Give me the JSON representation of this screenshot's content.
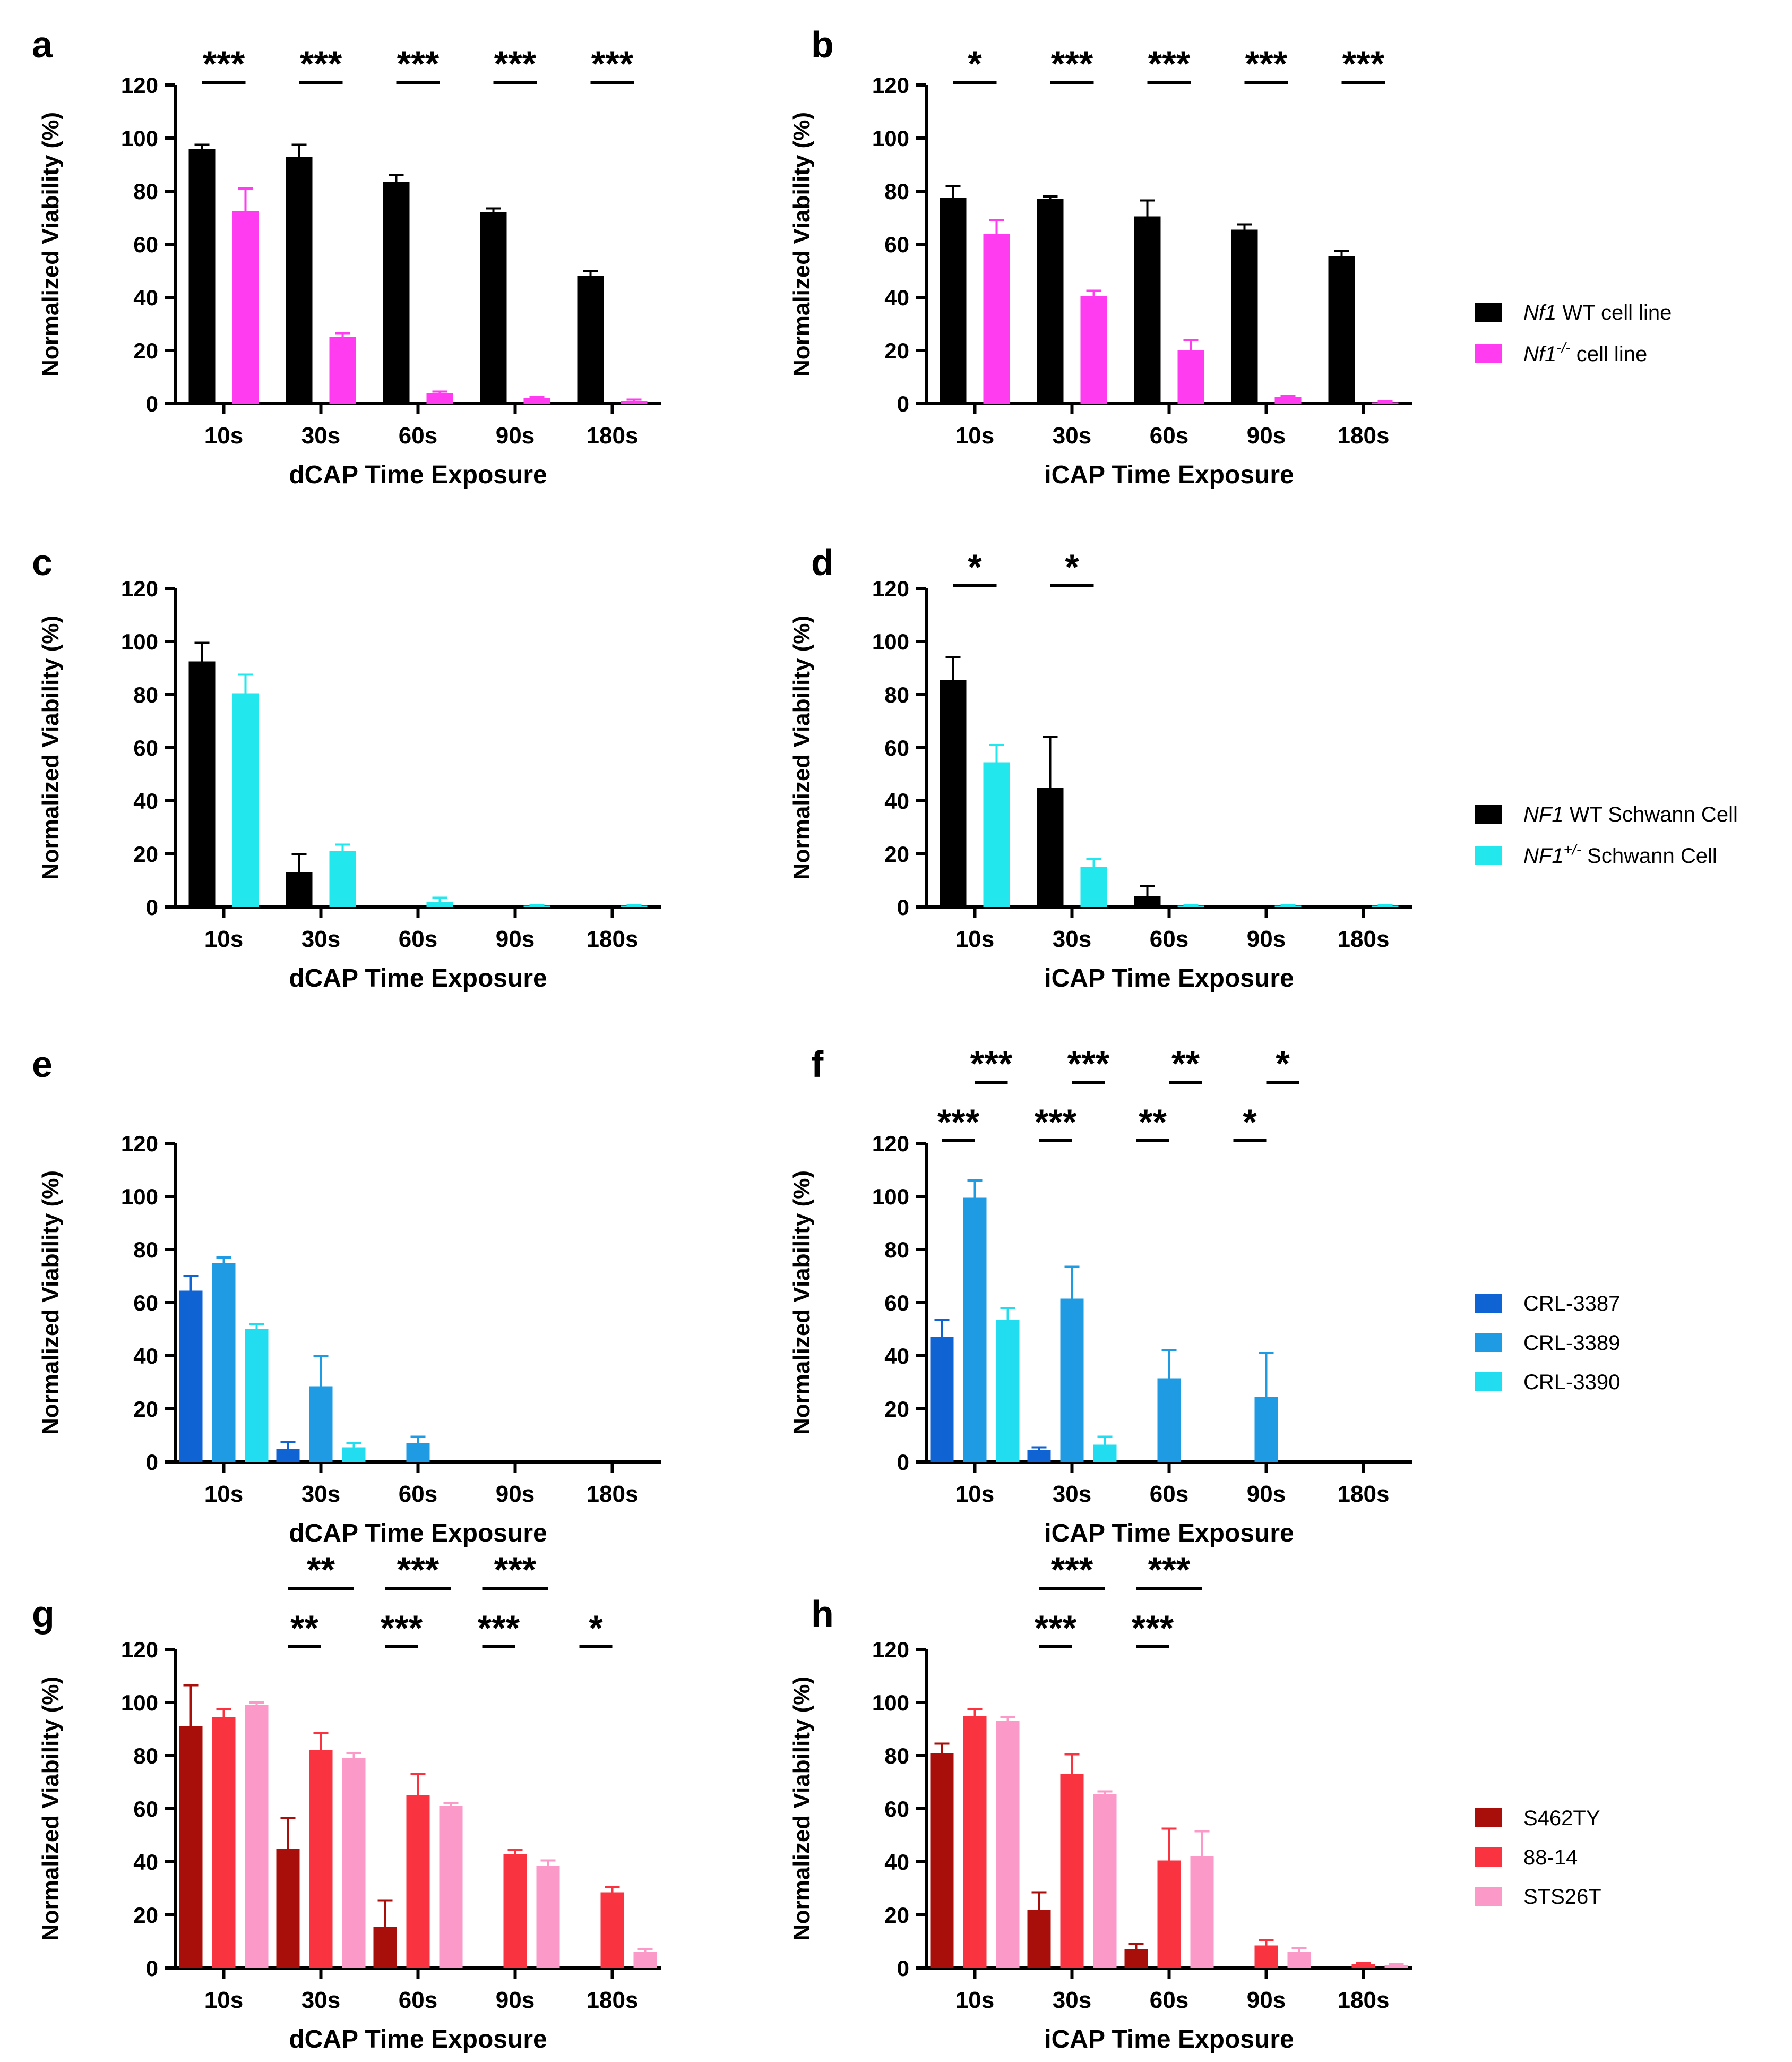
{
  "figure": {
    "y_axis_label": "Normalized Viability (%)",
    "categories": [
      "10s",
      "30s",
      "60s",
      "90s",
      "180s"
    ],
    "ylim": [
      0,
      120
    ],
    "yticks": [
      "0",
      "20",
      "40",
      "60",
      "80",
      "100",
      "120"
    ]
  },
  "legends": [
    {
      "entries": [
        {
          "italic": "Nf1",
          "sup": "",
          "rest": " WT cell line",
          "color": "#000000"
        },
        {
          "italic": "Nf1",
          "sup": "-/-",
          "rest": " cell line",
          "color": "#ff3cf0"
        }
      ]
    },
    {
      "entries": [
        {
          "italic": "NF1",
          "sup": "",
          "rest": " WT Schwann Cell",
          "color": "#000000"
        },
        {
          "italic": "NF1",
          "sup": "+/-",
          "rest": " Schwann Cell",
          "color": "#22e8ee"
        }
      ]
    },
    {
      "entries": [
        {
          "italic": "",
          "sup": "",
          "rest": "CRL-3387",
          "color": "#0f63d2"
        },
        {
          "italic": "",
          "sup": "",
          "rest": "CRL-3389",
          "color": "#1f9be3"
        },
        {
          "italic": "",
          "sup": "",
          "rest": "CRL-3390",
          "color": "#22dcef"
        }
      ]
    },
    {
      "entries": [
        {
          "italic": "",
          "sup": "",
          "rest": "S462TY",
          "color": "#a80f0b"
        },
        {
          "italic": "",
          "sup": "",
          "rest": "88-14",
          "color": "#fa3340"
        },
        {
          "italic": "",
          "sup": "",
          "rest": "STS26T",
          "color": "#fb9ac8"
        }
      ]
    }
  ],
  "chart_data": [
    {
      "panel": "a",
      "type": "bar",
      "xlabel": "dCAP Time Exposure",
      "ylabel": "Normalized Viability (%)",
      "ylim": [
        0,
        120
      ],
      "categories": [
        "10s",
        "30s",
        "60s",
        "90s",
        "180s"
      ],
      "series": [
        {
          "name": "Nf1 WT cell line",
          "color": "#000000",
          "values": [
            96,
            93,
            83.5,
            72,
            48
          ],
          "errors": [
            1.5,
            4.5,
            2.5,
            1.5,
            2
          ]
        },
        {
          "name": "Nf1-/- cell line",
          "color": "#ff3cf0",
          "values": [
            72.5,
            25,
            4,
            2,
            1
          ],
          "errors": [
            8.5,
            1.5,
            0.5,
            0.5,
            0.5
          ]
        }
      ],
      "annotations": [
        {
          "label": "***",
          "from": [
            0,
            0
          ],
          "to": [
            0,
            1
          ],
          "row": 0
        },
        {
          "label": "***",
          "from": [
            1,
            0
          ],
          "to": [
            1,
            1
          ],
          "row": 0
        },
        {
          "label": "***",
          "from": [
            2,
            0
          ],
          "to": [
            2,
            1
          ],
          "row": 0
        },
        {
          "label": "***",
          "from": [
            3,
            0
          ],
          "to": [
            3,
            1
          ],
          "row": 0
        },
        {
          "label": "***",
          "from": [
            4,
            0
          ],
          "to": [
            4,
            1
          ],
          "row": 0
        }
      ]
    },
    {
      "panel": "b",
      "type": "bar",
      "xlabel": "iCAP Time Exposure",
      "ylabel": "Normalized Viability (%)",
      "ylim": [
        0,
        120
      ],
      "categories": [
        "10s",
        "30s",
        "60s",
        "90s",
        "180s"
      ],
      "series": [
        {
          "name": "Nf1 WT cell line",
          "color": "#000000",
          "values": [
            77.5,
            77,
            70.5,
            65.5,
            55.5
          ],
          "errors": [
            4.5,
            1,
            6,
            2,
            2
          ]
        },
        {
          "name": "Nf1-/- cell line",
          "color": "#ff3cf0",
          "values": [
            64,
            40.5,
            20,
            2.5,
            0.5
          ],
          "errors": [
            5,
            2,
            4,
            0.5,
            0.3
          ]
        }
      ],
      "annotations": [
        {
          "label": "*",
          "from": [
            0,
            0
          ],
          "to": [
            0,
            1
          ],
          "row": 0
        },
        {
          "label": "***",
          "from": [
            1,
            0
          ],
          "to": [
            1,
            1
          ],
          "row": 0
        },
        {
          "label": "***",
          "from": [
            2,
            0
          ],
          "to": [
            2,
            1
          ],
          "row": 0
        },
        {
          "label": "***",
          "from": [
            3,
            0
          ],
          "to": [
            3,
            1
          ],
          "row": 0
        },
        {
          "label": "***",
          "from": [
            4,
            0
          ],
          "to": [
            4,
            1
          ],
          "row": 0
        }
      ]
    },
    {
      "panel": "c",
      "type": "bar",
      "xlabel": "dCAP Time Exposure",
      "ylabel": "Normalized Viability (%)",
      "ylim": [
        0,
        120
      ],
      "categories": [
        "10s",
        "30s",
        "60s",
        "90s",
        "180s"
      ],
      "series": [
        {
          "name": "NF1 WT Schwann Cell",
          "color": "#000000",
          "values": [
            92.5,
            13,
            0,
            0,
            0
          ],
          "errors": [
            7,
            7,
            0,
            0,
            0
          ]
        },
        {
          "name": "NF1+/- Schwann Cell",
          "color": "#22e8ee",
          "values": [
            80.5,
            21,
            2,
            0.5,
            0.5
          ],
          "errors": [
            7,
            2.5,
            1.5,
            0.3,
            0.3
          ]
        }
      ],
      "annotations": []
    },
    {
      "panel": "d",
      "type": "bar",
      "xlabel": "iCAP Time Exposure",
      "ylabel": "Normalized Viability (%)",
      "ylim": [
        0,
        120
      ],
      "categories": [
        "10s",
        "30s",
        "60s",
        "90s",
        "180s"
      ],
      "series": [
        {
          "name": "NF1 WT Schwann Cell",
          "color": "#000000",
          "values": [
            85.5,
            45,
            4,
            0,
            0
          ],
          "errors": [
            8.5,
            19,
            4,
            0,
            0
          ]
        },
        {
          "name": "NF1+/- Schwann Cell",
          "color": "#22e8ee",
          "values": [
            54.5,
            15,
            0.5,
            0.5,
            0.5
          ],
          "errors": [
            6.5,
            3,
            0.3,
            0.3,
            0.3
          ]
        }
      ],
      "annotations": [
        {
          "label": "*",
          "from": [
            0,
            0
          ],
          "to": [
            0,
            1
          ],
          "row": 0
        },
        {
          "label": "*",
          "from": [
            1,
            0
          ],
          "to": [
            1,
            1
          ],
          "row": 0
        }
      ]
    },
    {
      "panel": "e",
      "type": "bar",
      "xlabel": "dCAP Time Exposure",
      "ylabel": "Normalized Viability (%)",
      "ylim": [
        0,
        120
      ],
      "categories": [
        "10s",
        "30s",
        "60s",
        "90s",
        "180s"
      ],
      "series": [
        {
          "name": "CRL-3387",
          "color": "#0f63d2",
          "values": [
            64.5,
            5,
            0,
            0,
            0
          ],
          "errors": [
            5.5,
            2.5,
            0,
            0,
            0
          ]
        },
        {
          "name": "CRL-3389",
          "color": "#1f9be3",
          "values": [
            75,
            28.5,
            7,
            0,
            0
          ],
          "errors": [
            2,
            11.5,
            2.5,
            0,
            0
          ]
        },
        {
          "name": "CRL-3390",
          "color": "#22dcef",
          "values": [
            50,
            5.5,
            0,
            0,
            0
          ],
          "errors": [
            2,
            1.5,
            0,
            0,
            0
          ]
        }
      ],
      "annotations": []
    },
    {
      "panel": "f",
      "type": "bar",
      "xlabel": "iCAP Time Exposure",
      "ylabel": "Normalized Viability (%)",
      "ylim": [
        0,
        120
      ],
      "categories": [
        "10s",
        "30s",
        "60s",
        "90s",
        "180s"
      ],
      "series": [
        {
          "name": "CRL-3387",
          "color": "#0f63d2",
          "values": [
            47,
            4.5,
            0,
            0,
            0
          ],
          "errors": [
            6.5,
            1,
            0,
            0,
            0
          ]
        },
        {
          "name": "CRL-3389",
          "color": "#1f9be3",
          "values": [
            99.5,
            61.5,
            31.5,
            24.5,
            0
          ],
          "errors": [
            6.5,
            12,
            10.5,
            16.5,
            0
          ]
        },
        {
          "name": "CRL-3390",
          "color": "#22dcef",
          "values": [
            53.5,
            6.5,
            0,
            0,
            0
          ],
          "errors": [
            4.5,
            3,
            0,
            0,
            0
          ]
        }
      ],
      "annotations": [
        {
          "label": "***",
          "from": [
            0,
            0
          ],
          "to": [
            0,
            1
          ],
          "row": 0
        },
        {
          "label": "***",
          "from": [
            0,
            1
          ],
          "to": [
            0,
            2
          ],
          "row": 1
        },
        {
          "label": "***",
          "from": [
            1,
            0
          ],
          "to": [
            1,
            1
          ],
          "row": 0
        },
        {
          "label": "***",
          "from": [
            1,
            1
          ],
          "to": [
            1,
            2
          ],
          "row": 1
        },
        {
          "label": "**",
          "from": [
            2,
            0
          ],
          "to": [
            2,
            1
          ],
          "row": 0
        },
        {
          "label": "**",
          "from": [
            2,
            1
          ],
          "to": [
            2,
            2
          ],
          "row": 1
        },
        {
          "label": "*",
          "from": [
            3,
            0
          ],
          "to": [
            3,
            1
          ],
          "row": 0
        },
        {
          "label": "*",
          "from": [
            3,
            1
          ],
          "to": [
            3,
            2
          ],
          "row": 1
        }
      ]
    },
    {
      "panel": "g",
      "type": "bar",
      "xlabel": "dCAP Time Exposure",
      "ylabel": "Normalized Viability (%)",
      "ylim": [
        0,
        120
      ],
      "categories": [
        "10s",
        "30s",
        "60s",
        "90s",
        "180s"
      ],
      "series": [
        {
          "name": "S462TY",
          "color": "#a80f0b",
          "values": [
            91,
            45,
            15.5,
            0,
            0
          ],
          "errors": [
            15.5,
            11.5,
            10,
            0,
            0
          ]
        },
        {
          "name": "88-14",
          "color": "#fa3340",
          "values": [
            94.5,
            82,
            65,
            43,
            28.5
          ],
          "errors": [
            3,
            6.5,
            8,
            1.5,
            2
          ]
        },
        {
          "name": "STS26T",
          "color": "#fb9ac8",
          "values": [
            99,
            79,
            61,
            38.5,
            6
          ],
          "errors": [
            1,
            2,
            1,
            2,
            1
          ]
        }
      ],
      "annotations": [
        {
          "label": "**",
          "from": [
            1,
            0
          ],
          "to": [
            1,
            1
          ],
          "row": 0
        },
        {
          "label": "**",
          "from": [
            1,
            0
          ],
          "to": [
            1,
            2
          ],
          "row": 1
        },
        {
          "label": "***",
          "from": [
            2,
            0
          ],
          "to": [
            2,
            1
          ],
          "row": 0
        },
        {
          "label": "***",
          "from": [
            2,
            0
          ],
          "to": [
            2,
            2
          ],
          "row": 1
        },
        {
          "label": "***",
          "from": [
            3,
            0
          ],
          "to": [
            3,
            1
          ],
          "row": 0
        },
        {
          "label": "***",
          "from": [
            3,
            0
          ],
          "to": [
            3,
            2
          ],
          "row": 1
        },
        {
          "label": "*",
          "from": [
            4,
            0
          ],
          "to": [
            4,
            1
          ],
          "row": 0
        }
      ]
    },
    {
      "panel": "h",
      "type": "bar",
      "xlabel": "iCAP Time Exposure",
      "ylabel": "Normalized Viability (%)",
      "ylim": [
        0,
        120
      ],
      "categories": [
        "10s",
        "30s",
        "60s",
        "90s",
        "180s"
      ],
      "series": [
        {
          "name": "S462TY",
          "color": "#a80f0b",
          "values": [
            81,
            22,
            7,
            0,
            0
          ],
          "errors": [
            3.5,
            6.5,
            2,
            0,
            0
          ]
        },
        {
          "name": "88-14",
          "color": "#fa3340",
          "values": [
            95,
            73,
            40.5,
            8.5,
            1.5
          ],
          "errors": [
            2.5,
            7.5,
            12,
            2,
            0.5
          ]
        },
        {
          "name": "STS26T",
          "color": "#fb9ac8",
          "values": [
            93,
            65.5,
            42,
            6,
            1
          ],
          "errors": [
            1.5,
            1,
            9.5,
            1.5,
            0.5
          ]
        }
      ],
      "annotations": [
        {
          "label": "***",
          "from": [
            1,
            0
          ],
          "to": [
            1,
            1
          ],
          "row": 0
        },
        {
          "label": "***",
          "from": [
            1,
            0
          ],
          "to": [
            1,
            2
          ],
          "row": 1
        },
        {
          "label": "***",
          "from": [
            2,
            0
          ],
          "to": [
            2,
            1
          ],
          "row": 0
        },
        {
          "label": "***",
          "from": [
            2,
            0
          ],
          "to": [
            2,
            2
          ],
          "row": 1
        }
      ]
    }
  ]
}
